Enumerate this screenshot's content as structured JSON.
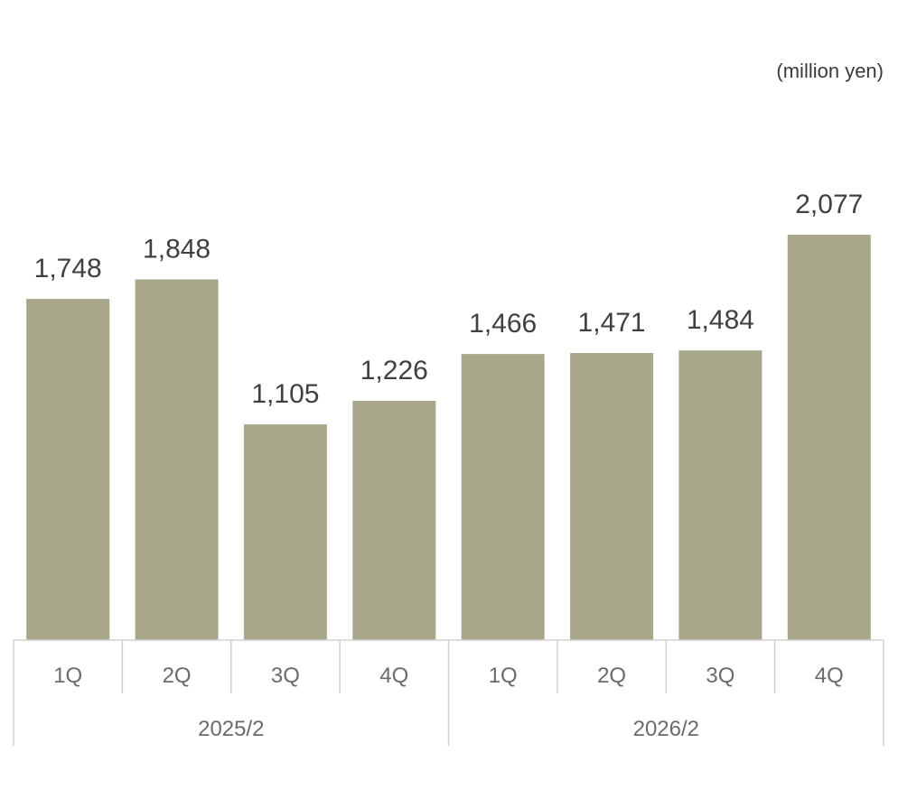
{
  "chart_data": {
    "type": "bar",
    "unit_label": "(million yen)",
    "categories": [
      "1Q",
      "2Q",
      "3Q",
      "4Q",
      "1Q",
      "2Q",
      "3Q",
      "4Q"
    ],
    "groups": [
      {
        "label": "2025/2",
        "count": 4
      },
      {
        "label": "2026/2",
        "count": 4
      }
    ],
    "values": [
      1748,
      1848,
      1105,
      1226,
      1466,
      1471,
      1484,
      2077
    ],
    "data_labels": [
      "1,748",
      "1,848",
      "1,105",
      "1,226",
      "1,466",
      "1,471",
      "1,484",
      "2,077"
    ],
    "ylim": [
      0,
      2077
    ],
    "grid": false,
    "legend": "none",
    "bar_color": "#a8a78b"
  }
}
